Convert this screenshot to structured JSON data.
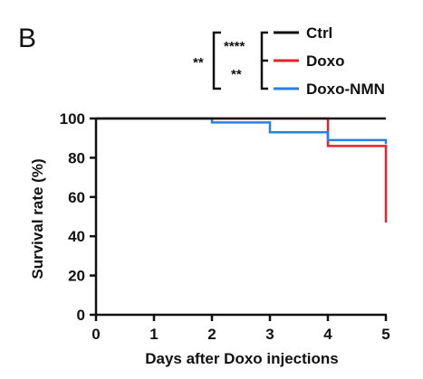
{
  "panel_label": "B",
  "chart_data": {
    "type": "line",
    "step": true,
    "xlabel": "Days after Doxo injections",
    "ylabel": "Survival rate  (%)",
    "xlim": [
      0,
      5
    ],
    "ylim": [
      0,
      100
    ],
    "xticks": [
      0,
      1,
      2,
      3,
      4,
      5
    ],
    "yticks": [
      0,
      20,
      40,
      60,
      80,
      100
    ],
    "grid": false,
    "legend_position": "top-right",
    "series": [
      {
        "name": "Ctrl",
        "color": "#111111",
        "x": [
          0,
          5
        ],
        "y": [
          100,
          100
        ]
      },
      {
        "name": "Doxo",
        "color": "#e8222b",
        "x": [
          0,
          4,
          5
        ],
        "y": [
          100,
          86,
          47
        ]
      },
      {
        "name": "Doxo-NMN",
        "color": "#2a7fe0",
        "x": [
          0,
          2,
          3,
          4,
          5
        ],
        "y": [
          100,
          98,
          93,
          89,
          87
        ]
      }
    ],
    "significance": [
      {
        "label": "****",
        "between": [
          "Ctrl",
          "Doxo"
        ]
      },
      {
        "label": "**",
        "between": [
          "Doxo",
          "Doxo-NMN"
        ]
      },
      {
        "label": "**",
        "between": [
          "Ctrl",
          "Doxo-NMN"
        ]
      }
    ]
  }
}
